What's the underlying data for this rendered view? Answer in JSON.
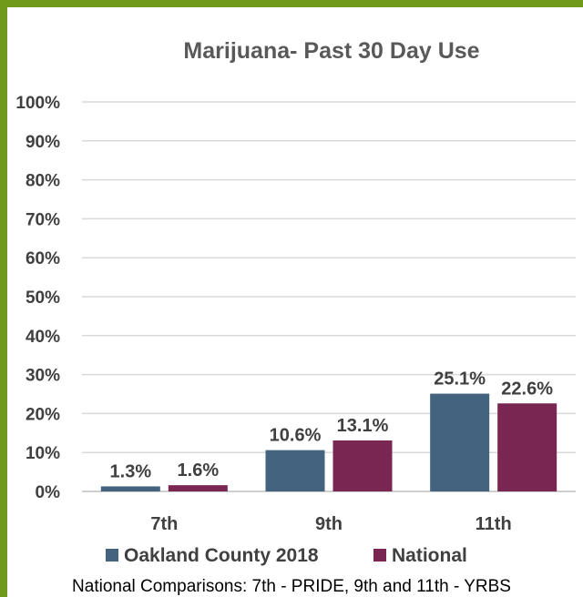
{
  "chart_data": {
    "type": "bar",
    "title": "Marijuana- Past 30 Day Use",
    "categories": [
      "7th",
      "9th",
      "11th"
    ],
    "series": [
      {
        "name": "Oakland County 2018",
        "values": [
          1.3,
          10.6,
          25.1
        ],
        "labels": [
          "1.3%",
          "10.6%",
          "25.1%"
        ],
        "color": "#44637f"
      },
      {
        "name": "National",
        "values": [
          1.6,
          13.1,
          22.6
        ],
        "labels": [
          "1.6%",
          "13.1%",
          "22.6%"
        ],
        "color": "#7a2653"
      }
    ],
    "yticks": [
      "0%",
      "10%",
      "20%",
      "30%",
      "40%",
      "50%",
      "60%",
      "70%",
      "80%",
      "90%",
      "100%"
    ],
    "ylim": [
      0,
      100
    ],
    "grid": true,
    "legend": "bottom",
    "footnote": "National Comparisons: 7th - PRIDE, 9th and 11th - YRBS"
  },
  "colors": {
    "frame": "#6f9a1a"
  }
}
